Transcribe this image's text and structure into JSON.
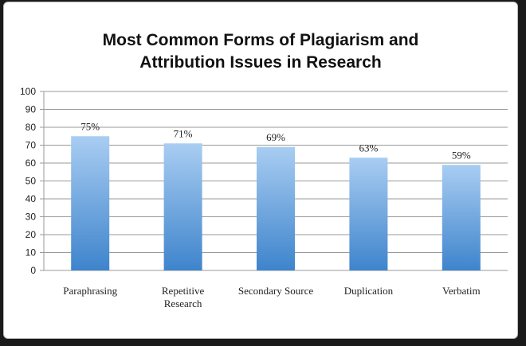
{
  "chart_data": {
    "type": "bar",
    "title_lines": [
      "Most Common Forms of Plagiarism and",
      "Attribution Issues in Research"
    ],
    "categories": [
      [
        "Paraphrasing"
      ],
      [
        "Repetitive",
        "Research"
      ],
      [
        "Secondary Source"
      ],
      [
        "Duplication"
      ],
      [
        "Verbatim"
      ]
    ],
    "values": [
      75,
      71,
      69,
      63,
      59
    ],
    "data_labels": [
      "75%",
      "71%",
      "69%",
      "63%",
      "59%"
    ],
    "yticks": [
      "0",
      "10",
      "20",
      "30",
      "40",
      "50",
      "60",
      "70",
      "80",
      "90",
      "100"
    ],
    "ylim": [
      0,
      100
    ],
    "grid": true,
    "legend": "none",
    "colors": {
      "bar_top": "#a9cdf2",
      "bar_bottom": "#3e84cc",
      "grid": "#9a9a9a"
    }
  }
}
